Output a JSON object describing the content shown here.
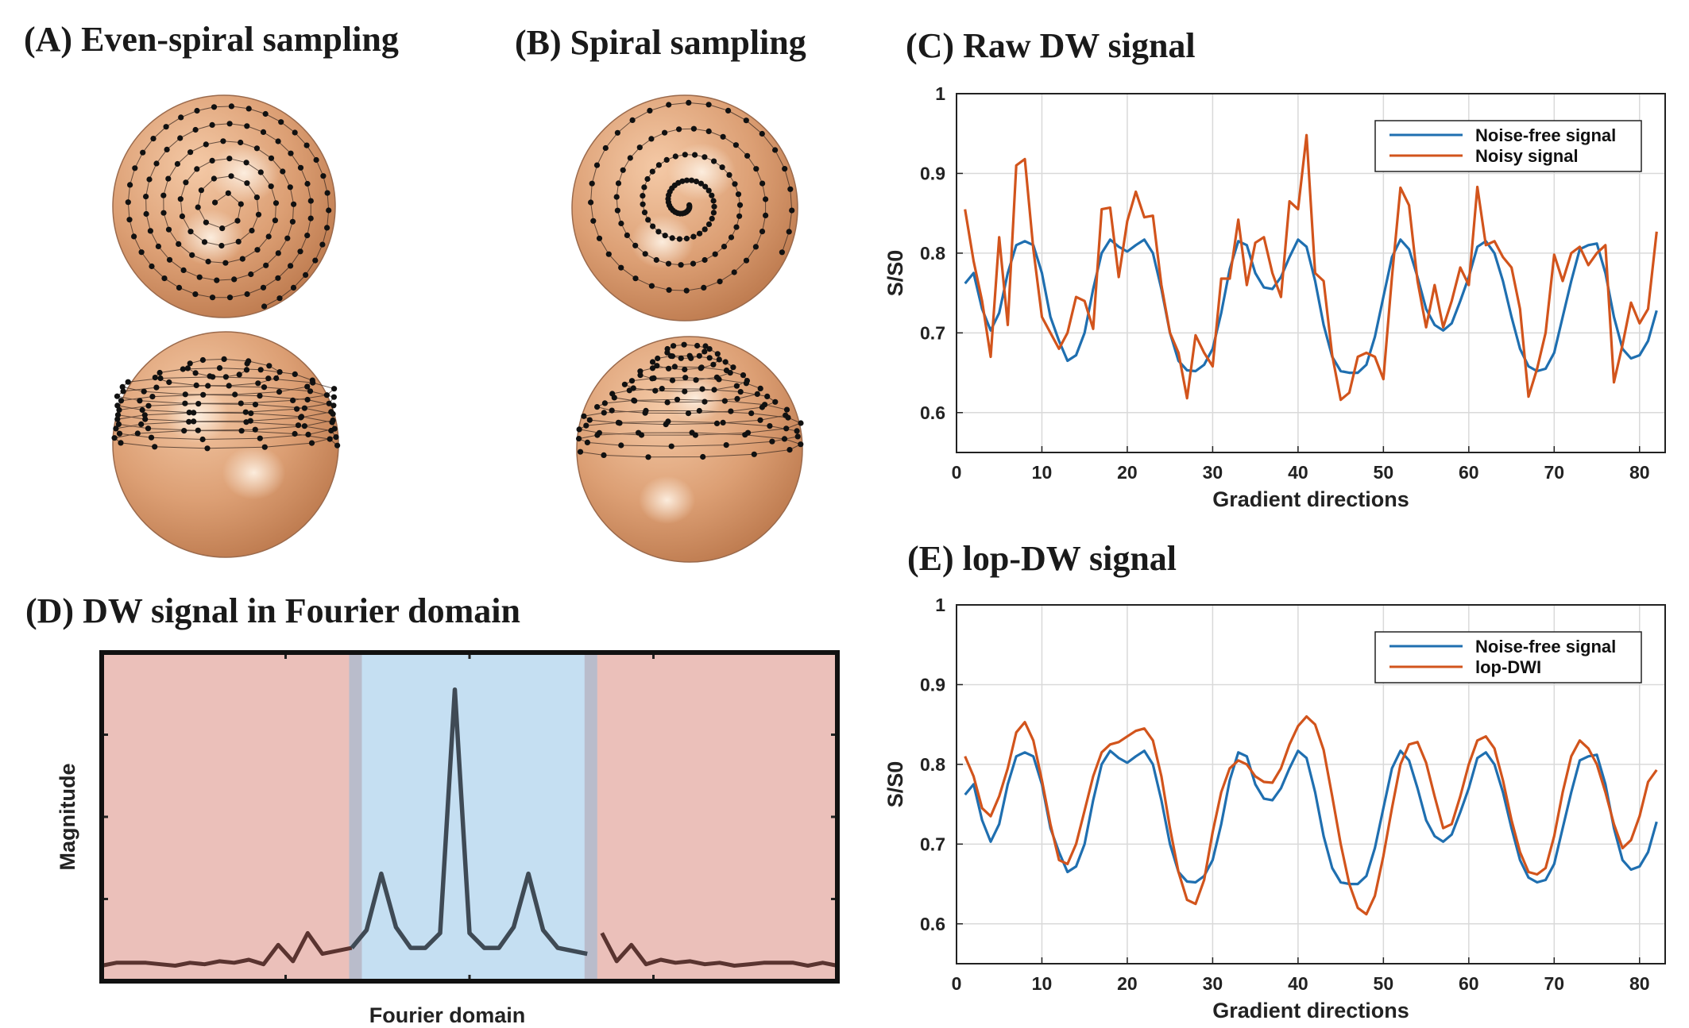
{
  "panels": {
    "a_title": "(A) Even-spiral sampling",
    "b_title": "(B) Spiral sampling",
    "c_title": "(C) Raw DW signal",
    "d_title": "(D) DW signal in Fourier domain",
    "e_title": "(E) lop-DW signal"
  },
  "colors": {
    "blue": "#1f6fb0",
    "orange": "#d2541c",
    "sphere_light": "#f7d2b3",
    "sphere_dark": "#c67e52",
    "low_freq_band": "#c5dff2",
    "high_freq_band": "#ebc0ba",
    "fourier_line": "#3f4a55",
    "fourier_line_outer": "#5a3430"
  },
  "chart_data": [
    {
      "type": "line",
      "title": "(C) Raw DW signal",
      "xlabel": "Gradient directions",
      "ylabel": "S/S0",
      "xlim": [
        0,
        83
      ],
      "ylim": [
        0.55,
        1.0
      ],
      "xticks": [
        0,
        10,
        20,
        30,
        40,
        50,
        60,
        70,
        80
      ],
      "yticks": [
        0.6,
        0.7,
        0.8,
        0.9,
        1
      ],
      "ytick_labels": [
        "0.6",
        "0.7",
        "0.8",
        "0.9",
        "1"
      ],
      "grid": true,
      "legend_position": "top-right",
      "x_start": 1,
      "series": [
        {
          "name": "Noise-free signal",
          "color": "#1f6fb0",
          "values": [
            0.762,
            0.775,
            0.73,
            0.703,
            0.725,
            0.775,
            0.81,
            0.815,
            0.81,
            0.775,
            0.72,
            0.69,
            0.665,
            0.672,
            0.7,
            0.755,
            0.8,
            0.817,
            0.808,
            0.802,
            0.81,
            0.817,
            0.8,
            0.755,
            0.7,
            0.665,
            0.653,
            0.652,
            0.66,
            0.68,
            0.725,
            0.78,
            0.815,
            0.81,
            0.775,
            0.757,
            0.755,
            0.77,
            0.795,
            0.817,
            0.808,
            0.765,
            0.71,
            0.67,
            0.652,
            0.65,
            0.65,
            0.66,
            0.695,
            0.745,
            0.795,
            0.817,
            0.805,
            0.77,
            0.73,
            0.71,
            0.703,
            0.712,
            0.74,
            0.77,
            0.808,
            0.815,
            0.8,
            0.765,
            0.72,
            0.68,
            0.658,
            0.652,
            0.655,
            0.675,
            0.72,
            0.765,
            0.805,
            0.81,
            0.812,
            0.775,
            0.72,
            0.68,
            0.668,
            0.672,
            0.69,
            0.728
          ]
        },
        {
          "name": "Noisy signal",
          "color": "#d2541c",
          "values": [
            0.855,
            0.79,
            0.74,
            0.67,
            0.82,
            0.71,
            0.91,
            0.918,
            0.805,
            0.72,
            0.7,
            0.68,
            0.7,
            0.745,
            0.74,
            0.705,
            0.855,
            0.857,
            0.77,
            0.84,
            0.877,
            0.845,
            0.847,
            0.76,
            0.7,
            0.675,
            0.618,
            0.697,
            0.675,
            0.658,
            0.768,
            0.768,
            0.842,
            0.76,
            0.813,
            0.82,
            0.775,
            0.745,
            0.865,
            0.855,
            0.948,
            0.775,
            0.765,
            0.672,
            0.616,
            0.625,
            0.67,
            0.675,
            0.67,
            0.642,
            0.77,
            0.882,
            0.86,
            0.765,
            0.707,
            0.76,
            0.707,
            0.74,
            0.782,
            0.76,
            0.883,
            0.81,
            0.815,
            0.795,
            0.782,
            0.73,
            0.62,
            0.655,
            0.7,
            0.798,
            0.765,
            0.8,
            0.808,
            0.785,
            0.8,
            0.81,
            0.638,
            0.685,
            0.738,
            0.712,
            0.73,
            0.827
          ]
        }
      ]
    },
    {
      "type": "line",
      "title": "(E) lop-DW signal",
      "xlabel": "Gradient directions",
      "ylabel": "S/S0",
      "xlim": [
        0,
        83
      ],
      "ylim": [
        0.55,
        1.0
      ],
      "xticks": [
        0,
        10,
        20,
        30,
        40,
        50,
        60,
        70,
        80
      ],
      "yticks": [
        0.6,
        0.7,
        0.8,
        0.9,
        1
      ],
      "ytick_labels": [
        "0.6",
        "0.7",
        "0.8",
        "0.9",
        "1"
      ],
      "grid": true,
      "legend_position": "top-right",
      "x_start": 1,
      "series": [
        {
          "name": "Noise-free signal",
          "color": "#1f6fb0",
          "values": [
            0.762,
            0.775,
            0.73,
            0.703,
            0.725,
            0.775,
            0.81,
            0.815,
            0.81,
            0.775,
            0.72,
            0.69,
            0.665,
            0.672,
            0.7,
            0.755,
            0.8,
            0.817,
            0.808,
            0.802,
            0.81,
            0.817,
            0.8,
            0.755,
            0.7,
            0.665,
            0.653,
            0.652,
            0.66,
            0.68,
            0.725,
            0.78,
            0.815,
            0.81,
            0.775,
            0.757,
            0.755,
            0.77,
            0.795,
            0.817,
            0.808,
            0.765,
            0.71,
            0.67,
            0.652,
            0.65,
            0.65,
            0.66,
            0.695,
            0.745,
            0.795,
            0.817,
            0.805,
            0.77,
            0.73,
            0.71,
            0.703,
            0.712,
            0.74,
            0.77,
            0.808,
            0.815,
            0.8,
            0.765,
            0.72,
            0.68,
            0.658,
            0.652,
            0.655,
            0.675,
            0.72,
            0.765,
            0.805,
            0.81,
            0.812,
            0.775,
            0.72,
            0.68,
            0.668,
            0.672,
            0.69,
            0.728
          ]
        },
        {
          "name": "lop-DWI",
          "color": "#d2541c",
          "values": [
            0.81,
            0.785,
            0.745,
            0.735,
            0.76,
            0.795,
            0.84,
            0.853,
            0.83,
            0.78,
            0.725,
            0.68,
            0.675,
            0.7,
            0.742,
            0.785,
            0.815,
            0.825,
            0.828,
            0.835,
            0.842,
            0.845,
            0.83,
            0.785,
            0.72,
            0.665,
            0.63,
            0.625,
            0.655,
            0.715,
            0.765,
            0.795,
            0.805,
            0.8,
            0.785,
            0.778,
            0.777,
            0.795,
            0.825,
            0.848,
            0.86,
            0.85,
            0.818,
            0.76,
            0.7,
            0.65,
            0.62,
            0.612,
            0.635,
            0.685,
            0.745,
            0.8,
            0.825,
            0.828,
            0.802,
            0.76,
            0.72,
            0.725,
            0.76,
            0.8,
            0.83,
            0.835,
            0.82,
            0.78,
            0.73,
            0.69,
            0.665,
            0.662,
            0.67,
            0.71,
            0.765,
            0.81,
            0.83,
            0.82,
            0.8,
            0.765,
            0.725,
            0.695,
            0.705,
            0.735,
            0.778,
            0.793
          ]
        }
      ]
    },
    {
      "type": "line",
      "title": "(D) DW signal in Fourier domain",
      "xlabel": "Fourier domain",
      "ylabel": "Magnitude",
      "ylim": [
        0,
        1
      ],
      "x": [
        0,
        2,
        4,
        6,
        8,
        10,
        12,
        14,
        16,
        18,
        20,
        22,
        24,
        26,
        28,
        30,
        32,
        34,
        36,
        38,
        40,
        42,
        44,
        46,
        48,
        50,
        52,
        54,
        56,
        58,
        60,
        62,
        64,
        66,
        68,
        70,
        72,
        74,
        76,
        78,
        80,
        82,
        84,
        86,
        88,
        90,
        92,
        94,
        96,
        98,
        100
      ],
      "values": [
        0.02,
        0.03,
        0.03,
        0.03,
        0.025,
        0.02,
        0.03,
        0.025,
        0.035,
        0.03,
        0.04,
        0.025,
        0.09,
        0.035,
        0.13,
        0.06,
        0.07,
        0.08,
        0.14,
        0.33,
        0.15,
        0.08,
        0.08,
        0.13,
        0.95,
        0.13,
        0.08,
        0.08,
        0.15,
        0.33,
        0.14,
        0.08,
        0.07,
        0.06,
        0.13,
        0.035,
        0.09,
        0.025,
        0.04,
        0.03,
        0.035,
        0.025,
        0.03,
        0.02,
        0.025,
        0.03,
        0.03,
        0.03,
        0.02,
        0.03,
        0.02
      ],
      "low_freq_band": [
        34.5,
        66.5
      ]
    }
  ]
}
